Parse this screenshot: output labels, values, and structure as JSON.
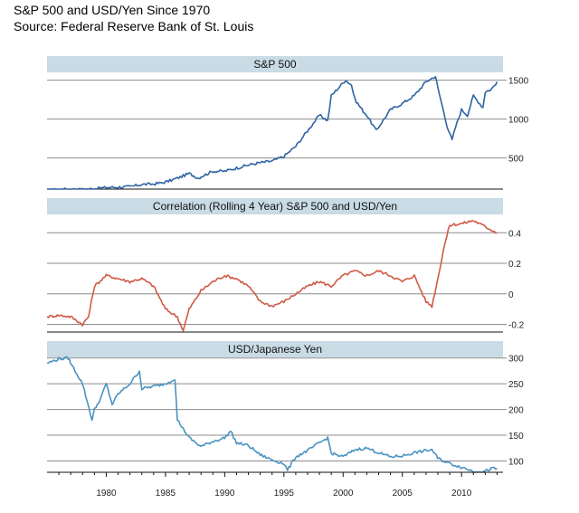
{
  "title": "S&P 500 and USD/Yen Since 1970",
  "subtitle": "Source: Federal Reserve Bank of St. Louis",
  "chart_data": [
    {
      "type": "line",
      "title": "S&P 500",
      "color": "#2f64a3",
      "ylim": [
        100,
        1600
      ],
      "yticks": [
        500,
        1000,
        1500
      ],
      "x": [
        1975,
        1976,
        1977,
        1978,
        1979,
        1980,
        1981,
        1982,
        1983,
        1984,
        1985,
        1986,
        1987,
        1987.8,
        1988,
        1989,
        1990,
        1991,
        1992,
        1993,
        1994,
        1995,
        1996,
        1997,
        1998,
        1998.7,
        1999,
        2000.2,
        2000.7,
        2001,
        2001.7,
        2002,
        2002.8,
        2003,
        2004,
        2005,
        2006,
        2007,
        2007.8,
        2008,
        2008.8,
        2009.2,
        2009.5,
        2010,
        2010.5,
        2011,
        2011.8,
        2012,
        2012.5,
        2013
      ],
      "series": [
        {
          "name": "S&P 500",
          "values": [
            80,
            95,
            100,
            95,
            105,
            120,
            125,
            130,
            160,
            165,
            190,
            240,
            300,
            240,
            260,
            330,
            330,
            370,
            410,
            440,
            460,
            520,
            650,
            850,
            1050,
            980,
            1300,
            1500,
            1440,
            1250,
            1100,
            1050,
            850,
            900,
            1120,
            1200,
            1300,
            1480,
            1550,
            1400,
            900,
            730,
            900,
            1120,
            1050,
            1300,
            1150,
            1350,
            1380,
            1480
          ]
        }
      ]
    },
    {
      "type": "line",
      "title": "Correlation (Rolling 4 Year) S&P 500 and USD/Yen",
      "color": "#cf5b45",
      "ylim": [
        -0.25,
        0.52
      ],
      "yticks": [
        -0.2,
        0.0,
        0.2,
        0.4
      ],
      "x": [
        1975,
        1976,
        1977,
        1978,
        1978.5,
        1979,
        1980,
        1981,
        1982,
        1983,
        1984,
        1985,
        1986,
        1986.5,
        1987,
        1988,
        1989,
        1990,
        1991,
        1992,
        1993,
        1994,
        1995,
        1996,
        1997,
        1998,
        1999,
        2000,
        2001,
        2002,
        2003,
        2004,
        2005,
        2006,
        2007,
        2007.5,
        2008,
        2008.5,
        2009,
        2010,
        2011,
        2012,
        2013
      ],
      "series": [
        {
          "name": "Correlation",
          "values": [
            -0.15,
            -0.14,
            -0.15,
            -0.2,
            -0.15,
            0.05,
            0.12,
            0.1,
            0.08,
            0.1,
            0.05,
            -0.1,
            -0.15,
            -0.24,
            -0.1,
            0.02,
            0.08,
            0.12,
            0.1,
            0.05,
            -0.05,
            -0.08,
            -0.05,
            0.0,
            0.05,
            0.08,
            0.05,
            0.12,
            0.15,
            0.12,
            0.15,
            0.12,
            0.08,
            0.12,
            -0.05,
            -0.08,
            0.1,
            0.3,
            0.45,
            0.46,
            0.48,
            0.44,
            0.4
          ]
        }
      ]
    },
    {
      "type": "line",
      "title": "USD/Japanese Yen",
      "color": "#4a93c0",
      "ylim": [
        78,
        310
      ],
      "yticks": [
        100,
        150,
        200,
        250,
        300
      ],
      "x": [
        1975,
        1976,
        1976.8,
        1977,
        1978,
        1978.8,
        1979,
        1979.5,
        1980,
        1980.5,
        1981,
        1981.5,
        1982,
        1982.8,
        1983,
        1984,
        1985,
        1985.8,
        1986,
        1987,
        1988,
        1989,
        1990,
        1990.5,
        1991,
        1992,
        1993,
        1994,
        1995,
        1995.3,
        1996,
        1997,
        1998,
        1998.7,
        1999,
        2000,
        2001,
        2002,
        2003,
        2004,
        2005,
        2006,
        2007,
        2007.5,
        2008,
        2009,
        2010,
        2011,
        2012,
        2012.5,
        2013
      ],
      "series": [
        {
          "name": "USD/JPY",
          "values": [
            290,
            298,
            300,
            290,
            250,
            180,
            200,
            220,
            250,
            210,
            230,
            240,
            250,
            275,
            240,
            245,
            250,
            260,
            180,
            145,
            128,
            138,
            145,
            158,
            135,
            130,
            112,
            102,
            95,
            82,
            108,
            120,
            135,
            145,
            115,
            108,
            122,
            125,
            116,
            108,
            110,
            116,
            120,
            122,
            105,
            95,
            88,
            80,
            80,
            85,
            85
          ]
        }
      ]
    }
  ],
  "x_axis": {
    "xlim": [
      1975,
      2013.5
    ],
    "ticks": [
      1980,
      1985,
      1990,
      1995,
      2000,
      2005,
      2010
    ],
    "tick_labels": [
      "1980",
      "1985",
      "1990",
      "1995",
      "2000",
      "2005",
      "2010"
    ]
  }
}
